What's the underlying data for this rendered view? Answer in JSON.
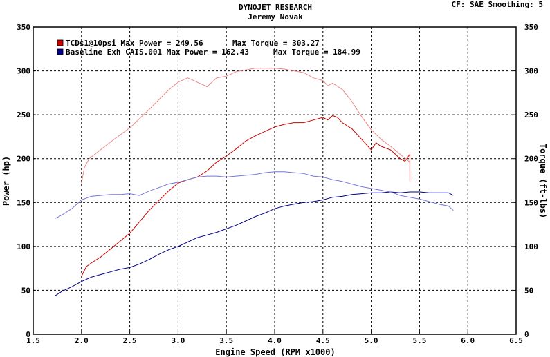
{
  "header": {
    "title": "DYNOJET RESEARCH",
    "subtitle": "Jeremy Novak",
    "info": "CF: SAE  Smoothing: 5"
  },
  "chart_data": {
    "type": "line",
    "xlabel": "Engine Speed (RPM x1000)",
    "ylabel_left": "Power (hp)",
    "ylabel_right": "Torque (ft-lbs)",
    "xlim": [
      1.5,
      6.5
    ],
    "ylim": [
      0,
      350
    ],
    "x_ticks": [
      "1.5",
      "2.0",
      "2.5",
      "3.0",
      "3.5",
      "4.0",
      "4.5",
      "5.0",
      "5.5",
      "6.0",
      "6.5"
    ],
    "y_ticks": [
      "0",
      "50",
      "100",
      "150",
      "200",
      "250",
      "300",
      "350"
    ],
    "grid": true,
    "legend_position": "top-left",
    "runs": [
      {
        "label": "TCDs1@10psi",
        "max_power_text": "Max Power = 249.56",
        "max_torque_text": "Max Torque = 303.27",
        "color": "#cc0000",
        "torque_color": "#ee8888",
        "series": [
          {
            "name": "Power",
            "x": [
              2.0,
              2.05,
              2.1,
              2.2,
              2.3,
              2.4,
              2.5,
              2.6,
              2.7,
              2.8,
              2.9,
              3.0,
              3.1,
              3.2,
              3.3,
              3.4,
              3.5,
              3.6,
              3.7,
              3.8,
              3.9,
              4.0,
              4.1,
              4.2,
              4.3,
              4.4,
              4.5,
              4.55,
              4.6,
              4.65,
              4.7,
              4.8,
              4.9,
              5.0,
              5.05,
              5.1,
              5.2,
              5.3,
              5.35,
              5.4,
              5.4
            ],
            "y": [
              66,
              77,
              81,
              88,
              97,
              106,
              115,
              128,
              141,
              152,
              163,
              172,
              176,
              179,
              186,
              196,
              203,
              211,
              220,
              226,
              231,
              236,
              239,
              241,
              241,
              244,
              247,
              244,
              249,
              247,
              241,
              234,
              222,
              210,
              218,
              214,
              210,
              200,
              197,
              205,
              174
            ]
          },
          {
            "name": "Torque",
            "x": [
              2.0,
              2.03,
              2.08,
              2.15,
              2.3,
              2.5,
              2.7,
              2.9,
              3.0,
              3.1,
              3.2,
              3.3,
              3.4,
              3.5,
              3.6,
              3.8,
              4.0,
              4.1,
              4.2,
              4.3,
              4.4,
              4.5,
              4.55,
              4.6,
              4.7,
              4.8,
              4.9,
              5.0,
              5.1,
              5.2,
              5.3,
              5.4,
              5.4
            ],
            "y": [
              172,
              190,
              200,
              206,
              219,
              235,
              256,
              278,
              287,
              292,
              287,
              282,
              292,
              294,
              299,
              303,
              303,
              302,
              300,
              298,
              292,
              289,
              283,
              286,
              279,
              265,
              248,
              233,
              222,
              214,
              205,
              196,
              185
            ]
          }
        ]
      },
      {
        "label": "Baseline Exh CAIS.001",
        "max_power_text": "Max Power = 162.43",
        "max_torque_text": "Max Torque = 184.99",
        "color": "#000088",
        "torque_color": "#7777dd",
        "series": [
          {
            "name": "Power",
            "x": [
              1.73,
              1.8,
              1.9,
              2.0,
              2.1,
              2.2,
              2.3,
              2.4,
              2.5,
              2.6,
              2.7,
              2.8,
              2.9,
              3.0,
              3.1,
              3.2,
              3.3,
              3.4,
              3.5,
              3.6,
              3.7,
              3.8,
              3.9,
              4.0,
              4.1,
              4.2,
              4.3,
              4.4,
              4.5,
              4.6,
              4.7,
              4.8,
              4.9,
              5.0,
              5.1,
              5.2,
              5.3,
              5.4,
              5.5,
              5.6,
              5.7,
              5.8,
              5.85
            ],
            "y": [
              44,
              49,
              54,
              60,
              65,
              68,
              71,
              74,
              76,
              80,
              85,
              91,
              96,
              100,
              105,
              110,
              113,
              116,
              120,
              124,
              129,
              134,
              138,
              143,
              146,
              148,
              150,
              151,
              153,
              156,
              157,
              159,
              160,
              161,
              161,
              162,
              161,
              162,
              162,
              161,
              161,
              161,
              158
            ]
          },
          {
            "name": "Torque",
            "x": [
              1.73,
              1.8,
              1.9,
              2.0,
              2.1,
              2.2,
              2.3,
              2.4,
              2.5,
              2.6,
              2.7,
              2.8,
              2.9,
              3.0,
              3.1,
              3.2,
              3.3,
              3.4,
              3.5,
              3.6,
              3.7,
              3.8,
              3.9,
              4.0,
              4.1,
              4.2,
              4.3,
              4.4,
              4.5,
              4.6,
              4.7,
              4.8,
              4.9,
              5.0,
              5.1,
              5.2,
              5.3,
              5.4,
              5.5,
              5.6,
              5.7,
              5.8,
              5.85
            ],
            "y": [
              132,
              136,
              143,
              153,
              157,
              158,
              159,
              159,
              160,
              158,
              163,
              167,
              171,
              173,
              176,
              179,
              180,
              180,
              179,
              180,
              181,
              182,
              184,
              185,
              185,
              184,
              183,
              180,
              179,
              176,
              174,
              171,
              168,
              166,
              164,
              162,
              158,
              156,
              154,
              151,
              148,
              146,
              141
            ]
          }
        ]
      }
    ]
  }
}
